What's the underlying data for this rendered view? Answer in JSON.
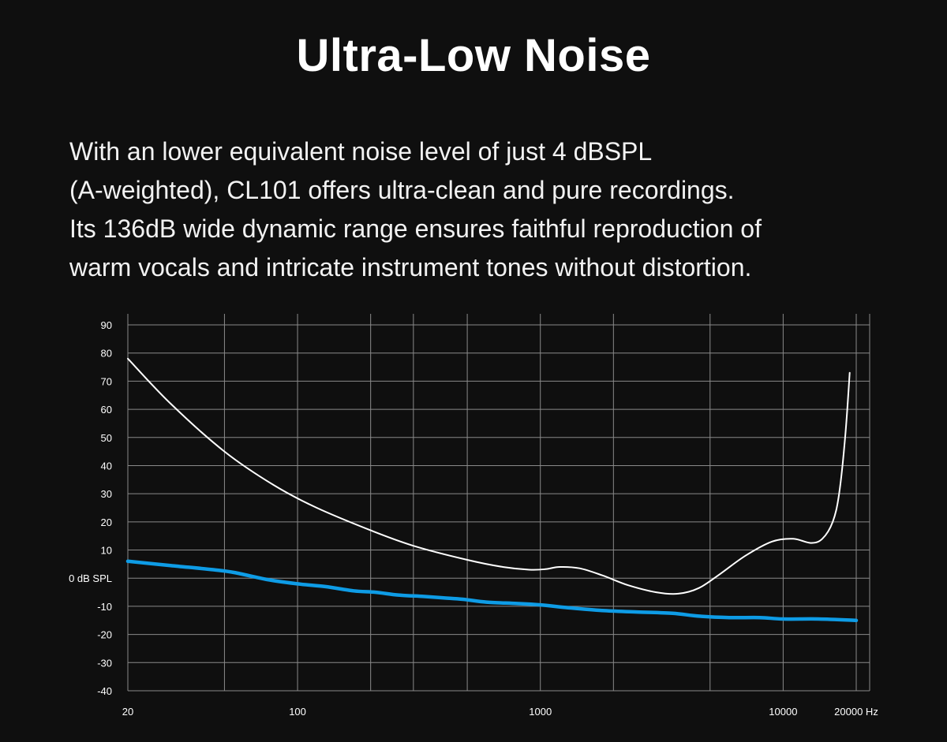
{
  "title": "Ultra-Low Noise",
  "description": [
    "With an lower equivalent noise level of just 4 dBSPL",
    "(A-weighted), CL101 offers ultra-clean and pure recordings.",
    "Its 136dB wide dynamic range ensures faithful reproduction of",
    "warm vocals and intricate instrument tones without distortion."
  ],
  "colors": {
    "background": "#0f0f0f",
    "grid": "#8a8a8a",
    "curve_white": "#ffffff",
    "curve_blue": "#0e9ce6"
  },
  "chart_data": {
    "type": "line",
    "x_scale": "log",
    "xlim": [
      20,
      20000
    ],
    "ylim": [
      -40,
      90
    ],
    "grid": true,
    "x_ticks": [
      20,
      100,
      1000,
      10000,
      20000
    ],
    "x_tick_labels": [
      "20",
      "100",
      "1000",
      "10000",
      "20000 Hz"
    ],
    "x_gridlines": [
      20,
      50,
      100,
      200,
      300,
      500,
      1000,
      2000,
      5000,
      10000,
      20000
    ],
    "y_ticks": [
      90,
      80,
      70,
      60,
      50,
      40,
      30,
      20,
      10,
      0,
      -10,
      -20,
      -30,
      -40
    ],
    "y_tick_labels": [
      "90",
      "80",
      "70",
      "60",
      "50",
      "40",
      "30",
      "20",
      "10",
      "0 dB SPL",
      "-10",
      "-20",
      "-30",
      "-40"
    ],
    "series": [
      {
        "color": "#ffffff",
        "points": [
          [
            20,
            78
          ],
          [
            30,
            62
          ],
          [
            50,
            45
          ],
          [
            80,
            33
          ],
          [
            120,
            25
          ],
          [
            200,
            17
          ],
          [
            300,
            11.5
          ],
          [
            500,
            6.5
          ],
          [
            700,
            4
          ],
          [
            900,
            3
          ],
          [
            1050,
            3.2
          ],
          [
            1200,
            4
          ],
          [
            1450,
            3.5
          ],
          [
            1800,
            1
          ],
          [
            2300,
            -2.5
          ],
          [
            3000,
            -5
          ],
          [
            3700,
            -5.5
          ],
          [
            4500,
            -3.5
          ],
          [
            5500,
            1.5
          ],
          [
            7000,
            8
          ],
          [
            9000,
            13
          ],
          [
            11000,
            14
          ],
          [
            13000,
            12.5
          ],
          [
            14500,
            14
          ],
          [
            16000,
            20
          ],
          [
            17000,
            30
          ],
          [
            18000,
            50
          ],
          [
            18800,
            73
          ]
        ]
      },
      {
        "color": "#0e9ce6",
        "points": [
          [
            20,
            6
          ],
          [
            30,
            4.5
          ],
          [
            45,
            3
          ],
          [
            55,
            2
          ],
          [
            75,
            -0.5
          ],
          [
            100,
            -2
          ],
          [
            130,
            -3
          ],
          [
            170,
            -4.5
          ],
          [
            210,
            -5
          ],
          [
            260,
            -6
          ],
          [
            330,
            -6.5
          ],
          [
            400,
            -7
          ],
          [
            480,
            -7.5
          ],
          [
            600,
            -8.5
          ],
          [
            800,
            -9
          ],
          [
            1000,
            -9.5
          ],
          [
            1300,
            -10.5
          ],
          [
            1800,
            -11.5
          ],
          [
            2500,
            -12
          ],
          [
            3500,
            -12.5
          ],
          [
            4500,
            -13.5
          ],
          [
            6000,
            -14
          ],
          [
            8000,
            -14
          ],
          [
            10000,
            -14.5
          ],
          [
            14000,
            -14.5
          ],
          [
            20000,
            -15
          ]
        ]
      }
    ]
  }
}
